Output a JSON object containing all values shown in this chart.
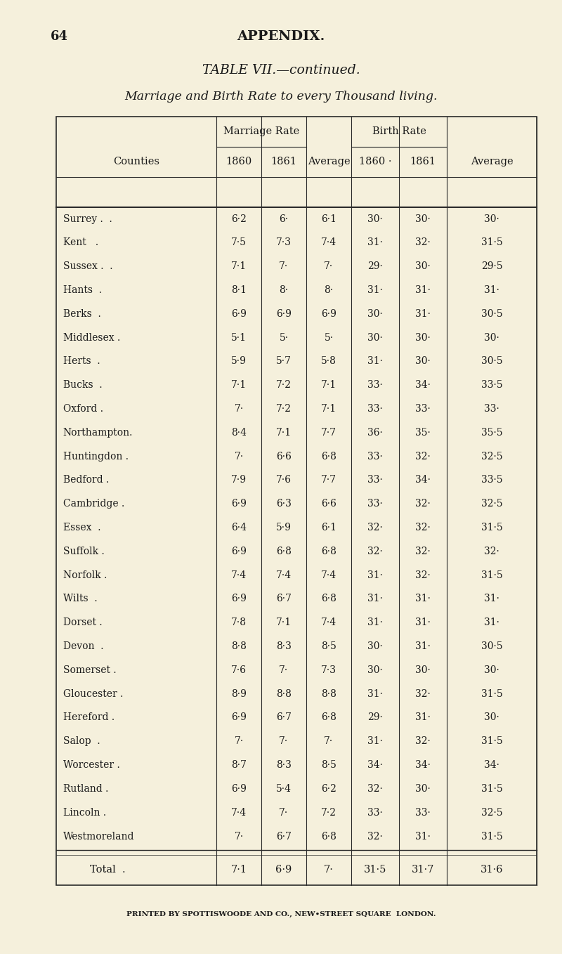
{
  "page_number": "64",
  "page_header": "APPENDIX.",
  "title": "TABLE VII.—continued.",
  "subtitle": "Marriage and Birth Rate to every Thousand living.",
  "footer": "PRINTED BY SPOTTISWOODE AND CO., NEW•STREET SQUARE  LONDON.",
  "rows": [
    [
      "Surrey .  .",
      "6·2",
      "6·",
      "6·1",
      "30·",
      "30·",
      "30·"
    ],
    [
      "Kent   .",
      "7·5",
      "7·3",
      "7·4",
      "31·",
      "32·",
      "31·5"
    ],
    [
      "Sussex .  .",
      "7·1",
      "7·",
      "7·",
      "29·",
      "30·",
      "29·5"
    ],
    [
      "Hants  .",
      "8·1",
      "8·",
      "8·",
      "31·",
      "31·",
      "31·"
    ],
    [
      "Berks  .",
      "6·9",
      "6·9",
      "6·9",
      "30·",
      "31·",
      "30·5"
    ],
    [
      "Middlesex .",
      "5·1",
      "5·",
      "5·",
      "30·",
      "30·",
      "30·"
    ],
    [
      "Herts  .",
      "5·9",
      "5·7",
      "5·8",
      "31·",
      "30·",
      "30·5"
    ],
    [
      "Bucks  .",
      "7·1",
      "7·2",
      "7·1",
      "33·",
      "34·",
      "33·5"
    ],
    [
      "Oxford .",
      "7·",
      "7·2",
      "7·1",
      "33·",
      "33·",
      "33·"
    ],
    [
      "Northampton.",
      "8·4",
      "7·1",
      "7·7",
      "36·",
      "35·",
      "35·5"
    ],
    [
      "Huntingdon .",
      "7·",
      "6·6",
      "6·8",
      "33·",
      "32·",
      "32·5"
    ],
    [
      "Bedford .",
      "7·9",
      "7·6",
      "7·7",
      "33·",
      "34·",
      "33·5"
    ],
    [
      "Cambridge .",
      "6·9",
      "6·3",
      "6·6",
      "33·",
      "32·",
      "32·5"
    ],
    [
      "Essex  .",
      "6·4",
      "5·9",
      "6·1",
      "32·",
      "32·",
      "31·5"
    ],
    [
      "Suffolk .",
      "6·9",
      "6·8",
      "6·8",
      "32·",
      "32·",
      "32·"
    ],
    [
      "Norfolk .",
      "7·4",
      "7·4",
      "7·4",
      "31·",
      "32·",
      "31·5"
    ],
    [
      "Wilts  .",
      "6·9",
      "6·7",
      "6·8",
      "31·",
      "31·",
      "31·"
    ],
    [
      "Dorset .",
      "7·8",
      "7·1",
      "7·4",
      "31·",
      "31·",
      "31·"
    ],
    [
      "Devon  .",
      "8·8",
      "8·3",
      "8·5",
      "30·",
      "31·",
      "30·5"
    ],
    [
      "Somerset .",
      "7·6",
      "7·",
      "7·3",
      "30·",
      "30·",
      "30·"
    ],
    [
      "Gloucester .",
      "8·9",
      "8·8",
      "8·8",
      "31·",
      "32·",
      "31·5"
    ],
    [
      "Hereford .",
      "6·9",
      "6·7",
      "6·8",
      "29·",
      "31·",
      "30·"
    ],
    [
      "Salop  .",
      "7·",
      "7·",
      "7·",
      "31·",
      "32·",
      "31·5"
    ],
    [
      "Worcester .",
      "8·7",
      "8·3",
      "8·5",
      "34·",
      "34·",
      "34·"
    ],
    [
      "Rutland .",
      "6·9",
      "5·4",
      "6·2",
      "32·",
      "30·",
      "31·5"
    ],
    [
      "Lincoln .",
      "7·4",
      "7·",
      "7·2",
      "33·",
      "33·",
      "32·5"
    ],
    [
      "Westmoreland",
      "7·",
      "6·7",
      "6·8",
      "32·",
      "31·",
      "31·5"
    ]
  ],
  "total_row": [
    "Total",
    "7·1",
    "6·9",
    "7·",
    "31·5",
    "31·7",
    "31·6"
  ],
  "bg_color": "#f5f0dc",
  "text_color": "#1a1a1a",
  "line_color": "#2a2a2a"
}
